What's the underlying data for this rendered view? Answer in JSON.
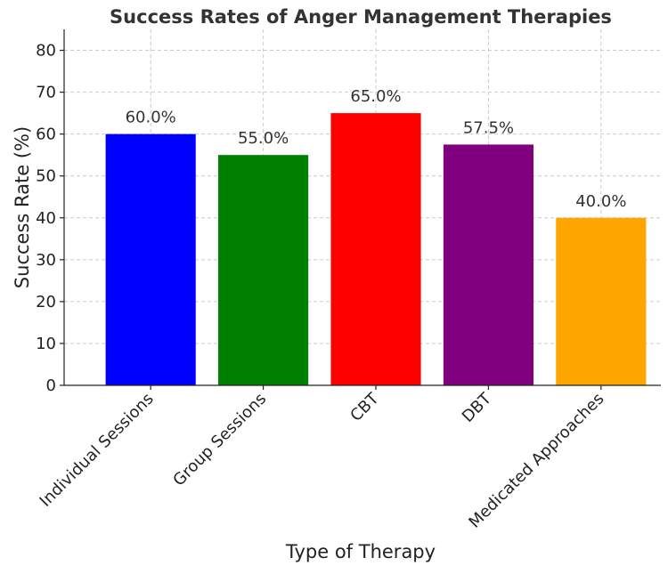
{
  "chart_data": {
    "type": "bar",
    "title": "Success Rates of Anger Management Therapies",
    "xlabel": "Type of Therapy",
    "ylabel": "Success Rate (%)",
    "categories": [
      "Individual Sessions",
      "Group Sessions",
      "CBT",
      "DBT",
      "Medicated Approaches"
    ],
    "values": [
      60.0,
      55.0,
      65.0,
      57.5,
      40.0
    ],
    "data_labels": [
      "60.0%",
      "55.0%",
      "65.0%",
      "57.5%",
      "40.0%"
    ],
    "colors": [
      "#0000ff",
      "#008000",
      "#ff0000",
      "#800080",
      "#ffa500"
    ],
    "ylim": [
      0,
      85
    ],
    "yticks": [
      0,
      10,
      20,
      30,
      40,
      50,
      60,
      70,
      80
    ],
    "grid": true,
    "legend": "none"
  }
}
